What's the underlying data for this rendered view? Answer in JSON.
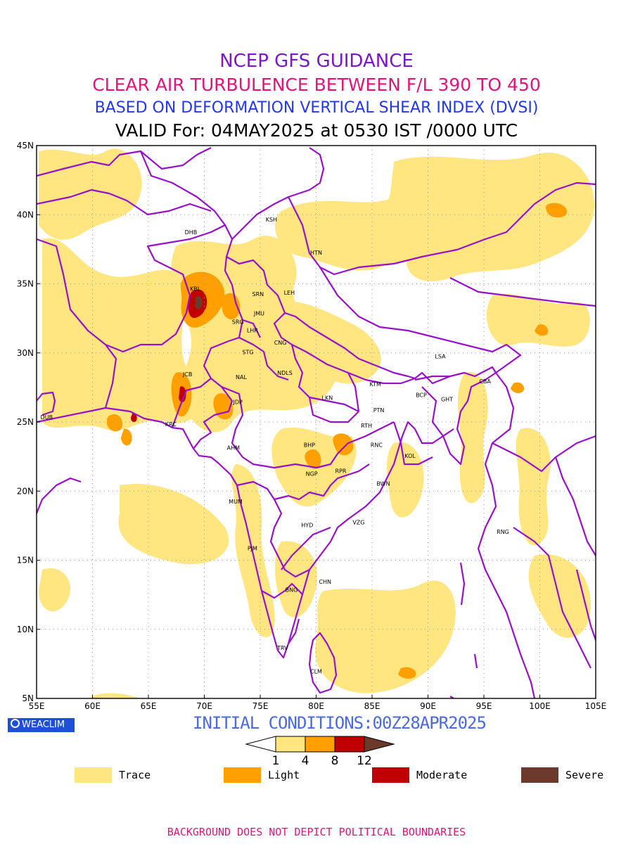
{
  "titles": {
    "line1": "NCEP GFS GUIDANCE",
    "line2": "CLEAR AIR TURBULENCE BETWEEN F/L 390 TO 450",
    "line3": "BASED ON DEFORMATION VERTICAL SHEAR INDEX (DVSI)",
    "line4": "VALID For: 04MAY2025 at 0530 IST /0000 UTC"
  },
  "map": {
    "lon_range": [
      55,
      105
    ],
    "lat_range": [
      5,
      45
    ],
    "lon_ticks": [
      "55E",
      "60E",
      "65E",
      "70E",
      "75E",
      "80E",
      "85E",
      "90E",
      "95E",
      "100E",
      "105E"
    ],
    "lat_ticks": [
      "5N",
      "10N",
      "15N",
      "20N",
      "25N",
      "30N",
      "35N",
      "40N",
      "45N"
    ],
    "grid": "dotted",
    "boundary_color": "#9a10c8",
    "stations": [
      {
        "code": "KSH",
        "lon": 76.0,
        "lat": 39.5
      },
      {
        "code": "DHB",
        "lon": 68.8,
        "lat": 38.6
      },
      {
        "code": "HTN",
        "lon": 80.0,
        "lat": 37.1
      },
      {
        "code": "KBL",
        "lon": 69.2,
        "lat": 34.5
      },
      {
        "code": "SRN",
        "lon": 74.8,
        "lat": 34.1
      },
      {
        "code": "LEH",
        "lon": 77.6,
        "lat": 34.2
      },
      {
        "code": "JMU",
        "lon": 74.9,
        "lat": 32.7
      },
      {
        "code": "SRG",
        "lon": 73.0,
        "lat": 32.1
      },
      {
        "code": "LHR",
        "lon": 74.3,
        "lat": 31.5
      },
      {
        "code": "CNG",
        "lon": 76.8,
        "lat": 30.6
      },
      {
        "code": "LSA",
        "lon": 91.1,
        "lat": 29.6
      },
      {
        "code": "STG",
        "lon": 73.9,
        "lat": 29.9
      },
      {
        "code": "JCB",
        "lon": 68.5,
        "lat": 28.3
      },
      {
        "code": "NAL",
        "lon": 73.3,
        "lat": 28.1
      },
      {
        "code": "NDLS",
        "lon": 77.2,
        "lat": 28.4
      },
      {
        "code": "KTM",
        "lon": 85.3,
        "lat": 27.6
      },
      {
        "code": "CBA",
        "lon": 95.1,
        "lat": 27.8
      },
      {
        "code": "BCP",
        "lon": 89.4,
        "lat": 26.8
      },
      {
        "code": "GHT",
        "lon": 91.7,
        "lat": 26.5
      },
      {
        "code": "LKN",
        "lon": 81.0,
        "lat": 26.6
      },
      {
        "code": "JDP",
        "lon": 73.0,
        "lat": 26.3
      },
      {
        "code": "PTN",
        "lon": 85.6,
        "lat": 25.7
      },
      {
        "code": "DUB",
        "lon": 55.9,
        "lat": 25.2
      },
      {
        "code": "KRC",
        "lon": 67.0,
        "lat": 24.7
      },
      {
        "code": "RTH",
        "lon": 84.5,
        "lat": 24.6
      },
      {
        "code": "BHP",
        "lon": 79.4,
        "lat": 23.2
      },
      {
        "code": "AHM",
        "lon": 72.6,
        "lat": 23.0
      },
      {
        "code": "RNC",
        "lon": 85.4,
        "lat": 23.2
      },
      {
        "code": "KOL",
        "lon": 88.4,
        "lat": 22.4
      },
      {
        "code": "NGP",
        "lon": 79.6,
        "lat": 21.1
      },
      {
        "code": "RPR",
        "lon": 82.2,
        "lat": 21.3
      },
      {
        "code": "BWN",
        "lon": 86.0,
        "lat": 20.4
      },
      {
        "code": "MUM",
        "lon": 72.8,
        "lat": 19.1
      },
      {
        "code": "HYD",
        "lon": 79.2,
        "lat": 17.4
      },
      {
        "code": "VZG",
        "lon": 83.8,
        "lat": 17.6
      },
      {
        "code": "RNG",
        "lon": 96.7,
        "lat": 16.9
      },
      {
        "code": "PJM",
        "lon": 74.3,
        "lat": 15.7
      },
      {
        "code": "CHN",
        "lon": 80.8,
        "lat": 13.3
      },
      {
        "code": "BNG",
        "lon": 77.8,
        "lat": 12.7
      },
      {
        "code": "TRV",
        "lon": 77.0,
        "lat": 8.5
      },
      {
        "code": "CLM",
        "lon": 80.0,
        "lat": 6.8
      }
    ]
  },
  "initial_conditions": "INITIAL CONDITIONS:00Z28APR2025",
  "colorbar": {
    "ticks": [
      "1",
      "4",
      "8",
      "12"
    ],
    "colors": [
      "#ffe680",
      "#ffa000",
      "#c00000",
      "#6b3a2a"
    ]
  },
  "legend": [
    {
      "label": "Trace",
      "color": "#ffe680"
    },
    {
      "label": "Light",
      "color": "#ffa000"
    },
    {
      "label": "Moderate",
      "color": "#c00000"
    },
    {
      "label": "Severe",
      "color": "#6b3a2a"
    }
  ],
  "logo_text": "WEACLIM",
  "footer": "BACKGROUND DOES NOT DEPICT POLITICAL BOUNDARIES"
}
